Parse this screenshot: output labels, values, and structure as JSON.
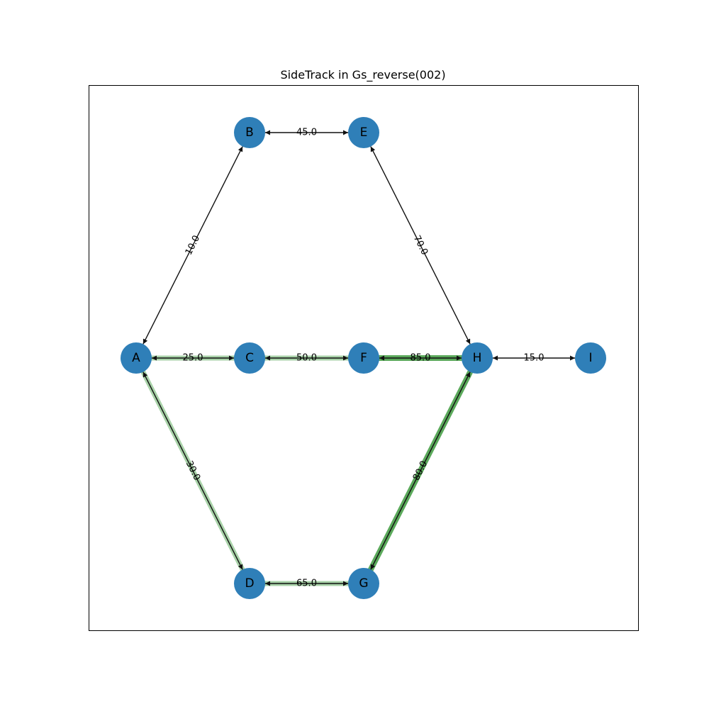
{
  "title": "SideTrack in Gs_reverse(002)",
  "colors": {
    "node_fill": "#2f7fb8",
    "edge": "#111111",
    "highlight_light": "#8cc38c",
    "highlight_dark": "#3f9b3f",
    "frame": "#000000"
  },
  "nodes": [
    {
      "id": "A",
      "label": "A"
    },
    {
      "id": "B",
      "label": "B"
    },
    {
      "id": "C",
      "label": "C"
    },
    {
      "id": "D",
      "label": "D"
    },
    {
      "id": "E",
      "label": "E"
    },
    {
      "id": "F",
      "label": "F"
    },
    {
      "id": "G",
      "label": "G"
    },
    {
      "id": "H",
      "label": "H"
    },
    {
      "id": "I",
      "label": "I"
    }
  ],
  "edges": [
    {
      "source": "A",
      "target": "B",
      "weight": "10.0",
      "highlight": "none"
    },
    {
      "source": "B",
      "target": "E",
      "weight": "45.0",
      "highlight": "none"
    },
    {
      "source": "E",
      "target": "H",
      "weight": "70.0",
      "highlight": "none"
    },
    {
      "source": "A",
      "target": "C",
      "weight": "25.0",
      "highlight": "light"
    },
    {
      "source": "C",
      "target": "F",
      "weight": "50.0",
      "highlight": "light"
    },
    {
      "source": "F",
      "target": "H",
      "weight": "85.0",
      "highlight": "dark"
    },
    {
      "source": "H",
      "target": "I",
      "weight": "15.0",
      "highlight": "none"
    },
    {
      "source": "A",
      "target": "D",
      "weight": "30.0",
      "highlight": "light"
    },
    {
      "source": "D",
      "target": "G",
      "weight": "65.0",
      "highlight": "light"
    },
    {
      "source": "G",
      "target": "H",
      "weight": "80.0",
      "highlight": "dark"
    }
  ]
}
